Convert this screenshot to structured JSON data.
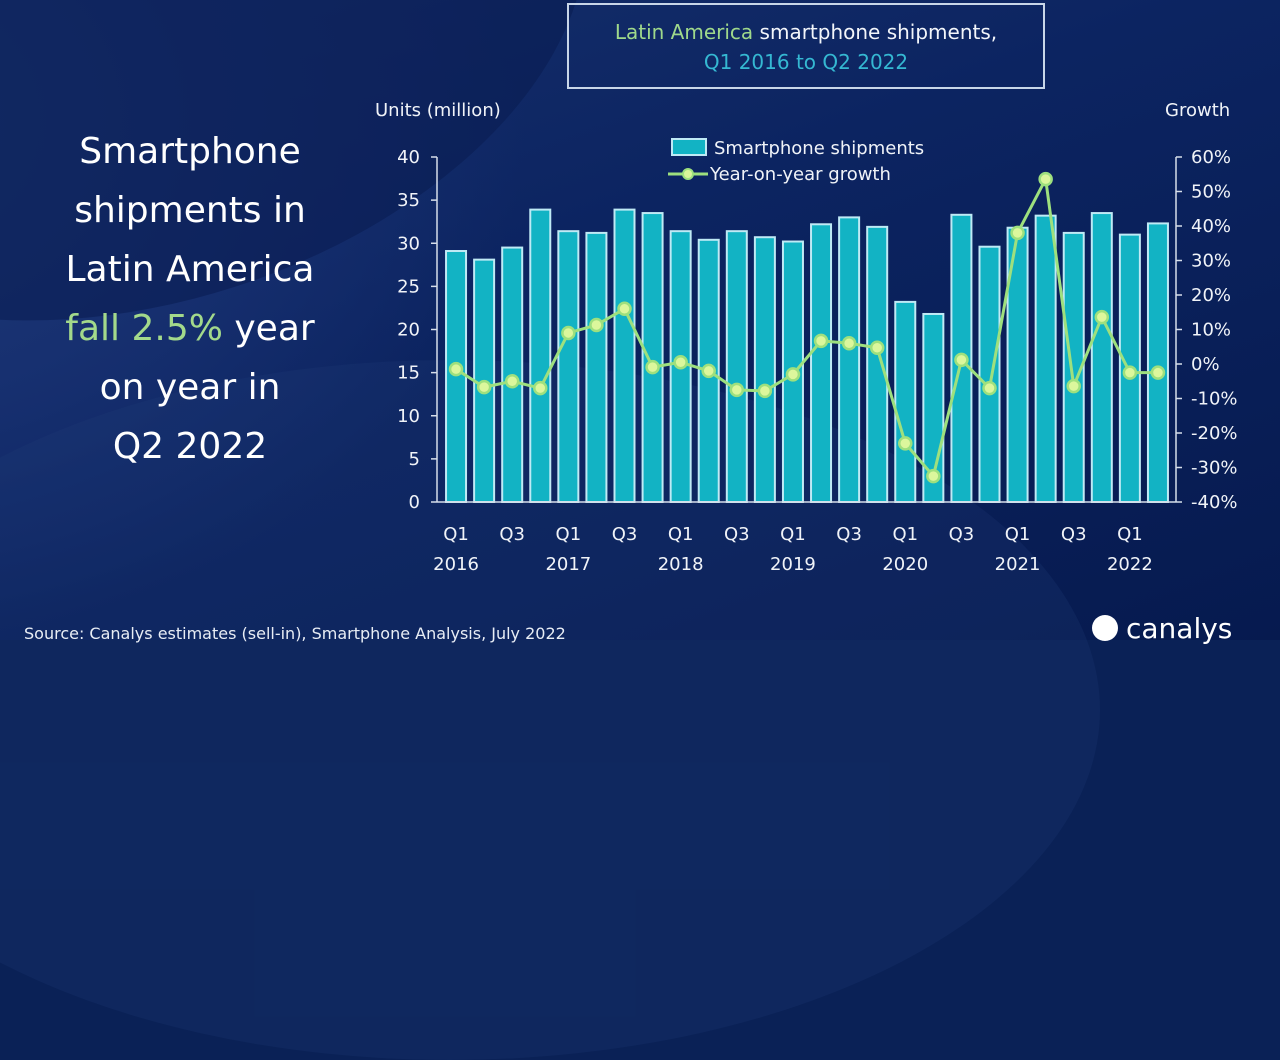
{
  "slide": {
    "title_part1": "Latin America",
    "title_part2": " smartphone shipments,",
    "title_line2": "Q1 2016 to Q2 2022",
    "headline_lines": [
      "Smartphone",
      "shipments in",
      "Latin America"
    ],
    "headline_green": "fall 2.5%",
    "headline_after_green": " year",
    "headline_tail": [
      "on year in",
      "Q2 2022"
    ],
    "source": "Source: Canalys estimates (sell-in), Smartphone Analysis, July 2022",
    "logo_text": "canalys",
    "colors": {
      "bar": "#12b3c4",
      "bar_border": "#bfeaf5",
      "line": "#9ee07e",
      "title_green": "#9fd88b",
      "title_cyan": "#35b8d2"
    }
  },
  "chart_data": {
    "type": "bar",
    "title": "Latin America smartphone shipments, Q1 2016 to Q2 2022",
    "ylabel": "Units (million)",
    "y2label": "Growth",
    "ylim": [
      0,
      40
    ],
    "y2lim": [
      -40,
      60
    ],
    "yticks": [
      0,
      5,
      10,
      15,
      20,
      25,
      30,
      35,
      40
    ],
    "y2ticks": [
      "-40%",
      "-30%",
      "-20%",
      "-10%",
      "0%",
      "10%",
      "20%",
      "30%",
      "40%",
      "50%",
      "60%"
    ],
    "legend": [
      "Smartphone shipments",
      "Year-on-year growth"
    ],
    "legend_position": "top-center",
    "grid": false,
    "categories": [
      "Q1 2016",
      "Q2 2016",
      "Q3 2016",
      "Q4 2016",
      "Q1 2017",
      "Q2 2017",
      "Q3 2017",
      "Q4 2017",
      "Q1 2018",
      "Q2 2018",
      "Q3 2018",
      "Q4 2018",
      "Q1 2019",
      "Q2 2019",
      "Q3 2019",
      "Q4 2019",
      "Q1 2020",
      "Q2 2020",
      "Q3 2020",
      "Q4 2020",
      "Q1 2021",
      "Q2 2021",
      "Q3 2021",
      "Q4 2021",
      "Q1 2022",
      "Q2 2022"
    ],
    "xtick_labels": [
      {
        "index": 0,
        "q": "Q1",
        "year": "2016"
      },
      {
        "index": 2,
        "q": "Q3",
        "year": ""
      },
      {
        "index": 4,
        "q": "Q1",
        "year": "2017"
      },
      {
        "index": 6,
        "q": "Q3",
        "year": ""
      },
      {
        "index": 8,
        "q": "Q1",
        "year": "2018"
      },
      {
        "index": 10,
        "q": "Q3",
        "year": ""
      },
      {
        "index": 12,
        "q": "Q1",
        "year": "2019"
      },
      {
        "index": 14,
        "q": "Q3",
        "year": ""
      },
      {
        "index": 16,
        "q": "Q1",
        "year": "2020"
      },
      {
        "index": 18,
        "q": "Q3",
        "year": ""
      },
      {
        "index": 20,
        "q": "Q1",
        "year": "2021"
      },
      {
        "index": 22,
        "q": "Q3",
        "year": ""
      },
      {
        "index": 24,
        "q": "Q1",
        "year": "2022"
      }
    ],
    "series": [
      {
        "name": "Smartphone shipments",
        "type": "bar",
        "axis": "left",
        "values": [
          29.1,
          28.1,
          29.5,
          33.9,
          31.4,
          31.2,
          33.9,
          33.5,
          31.4,
          30.4,
          31.4,
          30.7,
          30.2,
          32.2,
          33.0,
          31.9,
          23.2,
          21.8,
          33.3,
          29.6,
          31.8,
          33.2,
          31.2,
          33.5,
          31.0,
          32.3
        ]
      },
      {
        "name": "Year-on-year growth",
        "type": "line",
        "axis": "right",
        "unit": "%",
        "values": [
          -1.5,
          -6.7,
          -5.0,
          -7.0,
          9.0,
          11.3,
          16.0,
          -0.9,
          0.5,
          -2.0,
          -7.5,
          -7.8,
          -3.0,
          6.7,
          6.0,
          4.7,
          -23.0,
          -32.5,
          1.2,
          -7.0,
          38.0,
          53.6,
          -6.4,
          13.6,
          -2.5,
          -2.5
        ]
      }
    ]
  }
}
